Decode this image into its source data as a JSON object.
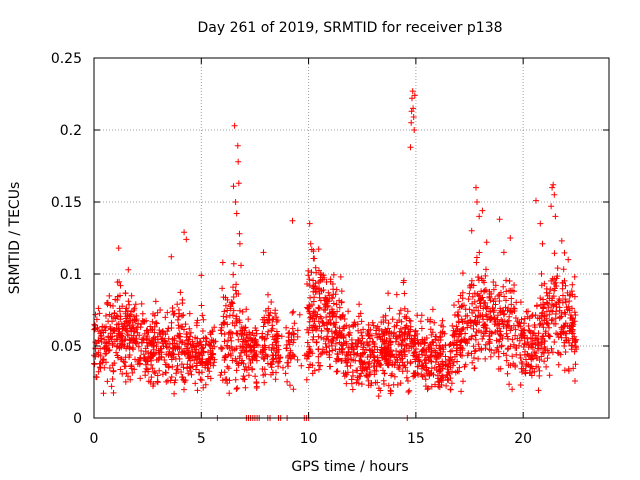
{
  "chart_data": {
    "type": "scatter",
    "title": "Day 261 of 2019, SRMTID for receiver p138",
    "xlabel": "GPS time / hours",
    "ylabel": "SRMTID / TECUs",
    "xlim": [
      0,
      24
    ],
    "ylim": [
      0,
      0.25
    ],
    "xticks": [
      0,
      5,
      10,
      15,
      20
    ],
    "xtick_labels": [
      "0",
      "5",
      "10",
      "15",
      "20"
    ],
    "yticks": [
      0,
      0.05,
      0.1,
      0.15,
      0.2,
      0.25
    ],
    "ytick_labels": [
      "0",
      "0.05",
      "0.1",
      "0.15",
      "0.2",
      "0.25"
    ],
    "grid": true,
    "marker": "+",
    "colors": {
      "points": "#ff0000",
      "grid": "#a0a0a0",
      "axis": "#000000"
    },
    "density_profile": {
      "x": [
        0,
        0.5,
        1,
        1.5,
        2,
        2.5,
        3,
        3.5,
        4,
        4.5,
        5,
        5.5,
        6,
        6.5,
        7,
        7.5,
        8,
        8.5,
        9,
        9.5,
        10,
        10.5,
        11,
        11.5,
        12,
        12.5,
        13,
        13.5,
        14,
        14.5,
        15,
        15.5,
        16,
        16.5,
        17,
        17.5,
        18,
        18.5,
        19,
        19.5,
        20,
        20.5,
        21,
        21.5,
        22,
        22.5
      ],
      "median": [
        0.05,
        0.052,
        0.058,
        0.065,
        0.055,
        0.05,
        0.052,
        0.048,
        0.052,
        0.045,
        0.048,
        0.042,
        0.05,
        0.058,
        0.05,
        0.045,
        0.055,
        0.05,
        0.045,
        0.055,
        0.07,
        0.072,
        0.068,
        0.055,
        0.05,
        0.048,
        0.045,
        0.048,
        0.05,
        0.052,
        0.048,
        0.045,
        0.04,
        0.038,
        0.055,
        0.065,
        0.072,
        0.07,
        0.065,
        0.062,
        0.055,
        0.05,
        0.065,
        0.075,
        0.065,
        0.06
      ],
      "spread": [
        0.015,
        0.016,
        0.02,
        0.02,
        0.016,
        0.016,
        0.017,
        0.016,
        0.02,
        0.014,
        0.016,
        0.014,
        0.018,
        0.025,
        0.016,
        0.016,
        0.02,
        0.016,
        0.016,
        0.018,
        0.025,
        0.022,
        0.022,
        0.016,
        0.015,
        0.015,
        0.014,
        0.016,
        0.016,
        0.02,
        0.016,
        0.016,
        0.014,
        0.014,
        0.02,
        0.022,
        0.022,
        0.02,
        0.02,
        0.02,
        0.016,
        0.016,
        0.022,
        0.024,
        0.02,
        0.018
      ],
      "gaps_hours": [
        [
          5.6,
          5.9
        ],
        [
          7.6,
          7.8
        ],
        [
          8.7,
          8.95
        ],
        [
          9.35,
          9.9
        ]
      ]
    },
    "outliers": [
      {
        "x": 1.15,
        "y": 0.118
      },
      {
        "x": 1.6,
        "y": 0.103
      },
      {
        "x": 3.6,
        "y": 0.112
      },
      {
        "x": 4.2,
        "y": 0.129
      },
      {
        "x": 4.3,
        "y": 0.124
      },
      {
        "x": 5.0,
        "y": 0.099
      },
      {
        "x": 6.0,
        "y": 0.108
      },
      {
        "x": 6.5,
        "y": 0.161
      },
      {
        "x": 6.55,
        "y": 0.203
      },
      {
        "x": 6.6,
        "y": 0.15
      },
      {
        "x": 6.65,
        "y": 0.142
      },
      {
        "x": 6.7,
        "y": 0.189
      },
      {
        "x": 6.72,
        "y": 0.178
      },
      {
        "x": 6.75,
        "y": 0.163
      },
      {
        "x": 6.78,
        "y": 0.128
      },
      {
        "x": 6.8,
        "y": 0.121
      },
      {
        "x": 6.85,
        "y": 0.106
      },
      {
        "x": 7.9,
        "y": 0.115
      },
      {
        "x": 9.25,
        "y": 0.137
      },
      {
        "x": 10.05,
        "y": 0.135
      },
      {
        "x": 10.1,
        "y": 0.121
      },
      {
        "x": 10.15,
        "y": 0.117
      },
      {
        "x": 11.5,
        "y": 0.098
      },
      {
        "x": 14.75,
        "y": 0.188
      },
      {
        "x": 14.78,
        "y": 0.205
      },
      {
        "x": 14.8,
        "y": 0.213
      },
      {
        "x": 14.82,
        "y": 0.222
      },
      {
        "x": 14.85,
        "y": 0.227
      },
      {
        "x": 14.87,
        "y": 0.215
      },
      {
        "x": 14.9,
        "y": 0.209
      },
      {
        "x": 14.92,
        "y": 0.2
      },
      {
        "x": 14.95,
        "y": 0.224
      },
      {
        "x": 17.6,
        "y": 0.13
      },
      {
        "x": 17.8,
        "y": 0.16
      },
      {
        "x": 17.85,
        "y": 0.15
      },
      {
        "x": 17.95,
        "y": 0.14
      },
      {
        "x": 18.1,
        "y": 0.144
      },
      {
        "x": 18.3,
        "y": 0.122
      },
      {
        "x": 18.9,
        "y": 0.138
      },
      {
        "x": 19.1,
        "y": 0.115
      },
      {
        "x": 19.4,
        "y": 0.125
      },
      {
        "x": 20.6,
        "y": 0.151
      },
      {
        "x": 20.8,
        "y": 0.135
      },
      {
        "x": 20.9,
        "y": 0.121
      },
      {
        "x": 21.3,
        "y": 0.147
      },
      {
        "x": 21.35,
        "y": 0.16
      },
      {
        "x": 21.4,
        "y": 0.162
      },
      {
        "x": 21.45,
        "y": 0.155
      },
      {
        "x": 21.5,
        "y": 0.14
      },
      {
        "x": 21.8,
        "y": 0.123
      },
      {
        "x": 22.1,
        "y": 0.11
      }
    ],
    "zero_values_x": [
      5.75,
      7.1,
      7.2,
      7.3,
      7.4,
      7.5,
      7.6,
      7.7,
      8.1,
      8.2,
      8.6,
      8.7,
      9.0,
      9.8,
      9.9,
      10.0,
      14.6
    ]
  }
}
